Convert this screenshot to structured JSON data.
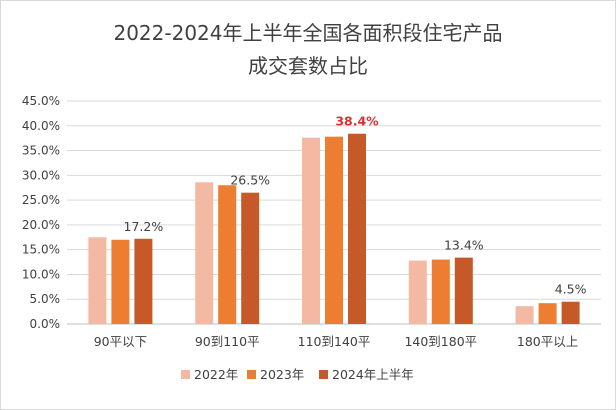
{
  "chart_data": {
    "type": "bar",
    "title_lines": [
      "2022-2024年上半年全国各面积段住宅产品",
      "成交套数占比"
    ],
    "categories": [
      "90平以下",
      "90到110平",
      "110到140平",
      "140到180平",
      "180平以上"
    ],
    "series": [
      {
        "name": "2022年",
        "values": [
          17.5,
          28.6,
          37.6,
          12.8,
          3.6
        ]
      },
      {
        "name": "2023年",
        "values": [
          17.0,
          28.0,
          37.8,
          13.0,
          4.2
        ]
      },
      {
        "name": "2024年上半年",
        "values": [
          17.2,
          26.5,
          38.4,
          13.4,
          4.5
        ]
      }
    ],
    "data_labels": [
      {
        "category_index": 0,
        "series_index": 2,
        "text": "17.2%",
        "highlight": false
      },
      {
        "category_index": 1,
        "series_index": 2,
        "text": "26.5%",
        "highlight": false
      },
      {
        "category_index": 2,
        "series_index": 2,
        "text": "38.4%",
        "highlight": true
      },
      {
        "category_index": 3,
        "series_index": 2,
        "text": "13.4%",
        "highlight": false
      },
      {
        "category_index": 4,
        "series_index": 2,
        "text": "4.5%",
        "highlight": false
      }
    ],
    "ylim": [
      0,
      45
    ],
    "yticks": [
      0,
      5,
      10,
      15,
      20,
      25,
      30,
      35,
      40,
      45
    ],
    "ytick_labels": [
      "0.0%",
      "5.0%",
      "10.0%",
      "15.0%",
      "20.0%",
      "25.0%",
      "30.0%",
      "35.0%",
      "40.0%",
      "45.0%"
    ],
    "grid": true,
    "legend_position": "bottom",
    "colors": [
      "#f4b9a3",
      "#ed7d31",
      "#c55a28"
    ],
    "highlight_color": "#e03030"
  }
}
